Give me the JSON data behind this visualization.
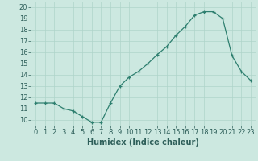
{
  "x": [
    0,
    1,
    2,
    3,
    4,
    5,
    6,
    7,
    8,
    9,
    10,
    11,
    12,
    13,
    14,
    15,
    16,
    17,
    18,
    19,
    20,
    21,
    22,
    23
  ],
  "y": [
    11.5,
    11.5,
    11.5,
    11.0,
    10.8,
    10.3,
    9.8,
    9.8,
    11.5,
    13.0,
    13.8,
    14.3,
    15.0,
    15.8,
    16.5,
    17.5,
    18.3,
    19.3,
    19.6,
    19.6,
    19.0,
    15.7,
    14.3,
    13.5
  ],
  "xlabel": "Humidex (Indice chaleur)",
  "xlim": [
    -0.5,
    23.5
  ],
  "ylim": [
    9.5,
    20.5
  ],
  "yticks": [
    10,
    11,
    12,
    13,
    14,
    15,
    16,
    17,
    18,
    19,
    20
  ],
  "xticks": [
    0,
    1,
    2,
    3,
    4,
    5,
    6,
    7,
    8,
    9,
    10,
    11,
    12,
    13,
    14,
    15,
    16,
    17,
    18,
    19,
    20,
    21,
    22,
    23
  ],
  "line_color": "#2e7f6f",
  "marker": "+",
  "bg_color": "#cce8e0",
  "grid_color": "#afd4ca",
  "tick_color": "#2e5f5a",
  "label_fontsize": 7.0,
  "tick_fontsize": 6.0
}
